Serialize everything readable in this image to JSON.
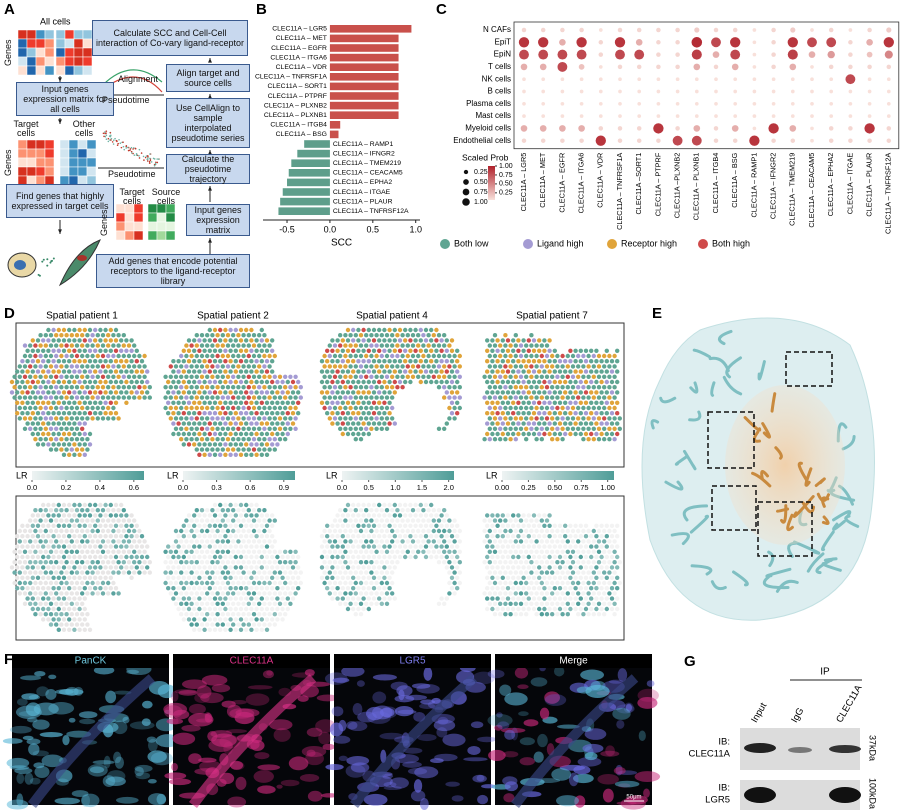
{
  "panel_a": {
    "letter": "A",
    "all_cells": "All cells",
    "genes_label": "Genes",
    "box_input_all": "Input  genes expression matrix for all cells",
    "target_cells": "Target cells",
    "other_cells": "Other cells",
    "box_find": "Find genes that highly expressed in target cells",
    "box_calc_scc": "Calculate SCC and Cell-Cell interaction of Co-vary ligand-receptor",
    "alignment": "Alignment",
    "pseudotime": "Pseudotime",
    "box_align": "Align target and source cells",
    "box_cellalign": "Use CellAlign to sample interpolated pseudotime series",
    "box_trajectory": "Calculate the pseudotime trajectory",
    "source_cells": "Source cells",
    "box_input": "Input  genes expression matrix",
    "box_add": "Add genes that encode potential receptors to the ligand-receptor library"
  },
  "chart_data": [
    {
      "type": "bar",
      "panel_label": "B",
      "xlabel": "SCC",
      "categories": [
        "CLEC11A – LGR5",
        "CLEC11A – MET",
        "CLEC11A – EGFR",
        "CLEC11A – ITGA6",
        "CLEC11A – VDR",
        "CLEC11A – TNFRSF1A",
        "CLEC11A – SORT1",
        "CLEC11A – PTPRF",
        "CLEC11A – PLXNB2",
        "CLEC11A – PLXNB1",
        "CLEC11A – ITGB4",
        "CLEC11A – BSG",
        "CLEC11A – RAMP1",
        "CLEC11A – IFNGR2",
        "CLEC11A – TMEM219",
        "CLEC11A – CEACAM5",
        "CLEC11A – EPHA2",
        "CLEC11A – ITGAE",
        "CLEC11A – PLAUR",
        "CLEC11A – TNFRSF12A"
      ],
      "values": [
        0.95,
        0.8,
        0.8,
        0.8,
        0.8,
        0.8,
        0.8,
        0.8,
        0.8,
        0.8,
        0.12,
        0.1,
        -0.3,
        -0.38,
        -0.45,
        -0.48,
        -0.5,
        -0.55,
        -0.58,
        -0.6
      ],
      "color_positive": "#c9504b",
      "color_negative": "#5e9e8b",
      "xlim": [
        -0.78,
        1.05
      ],
      "xticks": [
        -0.5,
        {
          "value": 0,
          "label": "0.0"
        },
        0.5,
        {
          "value": 1,
          "label": "1.0"
        }
      ]
    },
    {
      "type": "dot",
      "panel_label": "C",
      "rows": [
        "N CAFs",
        "EpiT",
        "EpiN",
        "T cells",
        "NK cells",
        "B cells",
        "Plasma cells",
        "Mast cells",
        "Myeloid cells",
        "Endothelial cells"
      ],
      "columns": [
        "CLEC11A – LGR5",
        "CLEC11A – MET",
        "CLEC11A – EGFR",
        "CLEC11A – ITGA6",
        "CLEC11A – VDR",
        "CLEC11A – TNFRSF1A",
        "CLEC11A –SORT1",
        "CLEC11A – PTPRF",
        "CLEC11A –PLXNB2",
        "CLEC11A – PLXNB1",
        "CLEC11A – ITGB4",
        "CLEC11A – BSG",
        "CLEC11A – RAMP1",
        "CLEC11A – IFNGR2",
        "CLEC11A – TMEM219",
        "CLEC11A – CEACAM5",
        "CLEC11A – EPHA2",
        "CLEC11A – ITGAE",
        "CLEC11A – PLAUR",
        "CLEC11A – TNFRSF12A"
      ],
      "values": [
        [
          0.1,
          0.1,
          0.1,
          0.1,
          0.05,
          0.1,
          0.1,
          0.1,
          0.1,
          0.15,
          0.1,
          0.1,
          0.05,
          0.1,
          0.15,
          0.05,
          0.1,
          0.05,
          0.1,
          0.15
        ],
        [
          0.9,
          0.9,
          0.3,
          0.9,
          0.1,
          0.9,
          0.3,
          0.1,
          0.1,
          0.95,
          0.8,
          0.9,
          0.05,
          0.1,
          0.9,
          0.8,
          0.8,
          0.1,
          0.3,
          0.9
        ],
        [
          0.8,
          0.8,
          0.8,
          0.8,
          0.1,
          0.8,
          0.8,
          0.1,
          0.1,
          0.85,
          0.3,
          0.8,
          0.05,
          0.1,
          0.85,
          0.3,
          0.4,
          0.1,
          0.2,
          0.5
        ],
        [
          0.3,
          0.3,
          0.8,
          0.2,
          0.05,
          0.1,
          0.1,
          0.1,
          0.1,
          0.3,
          0.1,
          0.3,
          0.05,
          0.1,
          0.3,
          0.05,
          0.1,
          0.1,
          0.1,
          0.1
        ],
        [
          0.05,
          0.05,
          0.05,
          0.05,
          0.05,
          0.05,
          0.05,
          0.05,
          0.05,
          0.05,
          0.05,
          0.05,
          0.05,
          0.05,
          0.05,
          0.05,
          0.05,
          0.8,
          0.05,
          0.05
        ],
        [
          0.05,
          0.05,
          0.05,
          0.05,
          0.05,
          0.05,
          0.05,
          0.05,
          0.05,
          0.05,
          0.05,
          0.05,
          0.05,
          0.05,
          0.05,
          0.05,
          0.05,
          0.05,
          0.05,
          0.05
        ],
        [
          0.05,
          0.05,
          0.05,
          0.05,
          0.05,
          0.05,
          0.05,
          0.05,
          0.05,
          0.05,
          0.05,
          0.05,
          0.05,
          0.05,
          0.05,
          0.05,
          0.05,
          0.05,
          0.05,
          0.05
        ],
        [
          0.05,
          0.05,
          0.05,
          0.05,
          0.05,
          0.05,
          0.05,
          0.05,
          0.05,
          0.05,
          0.05,
          0.05,
          0.05,
          0.05,
          0.05,
          0.05,
          0.05,
          0.05,
          0.05,
          0.05
        ],
        [
          0.3,
          0.3,
          0.3,
          0.3,
          0.1,
          0.1,
          0.1,
          0.9,
          0.1,
          0.3,
          0.1,
          0.3,
          0.05,
          0.9,
          0.3,
          0.05,
          0.1,
          0.1,
          0.9,
          0.1
        ],
        [
          0.1,
          0.1,
          0.1,
          0.1,
          0.9,
          0.1,
          0.1,
          0.1,
          0.8,
          0.8,
          0.1,
          0.1,
          0.9,
          0.1,
          0.1,
          0.05,
          0.1,
          0.1,
          0.1,
          0.1
        ]
      ],
      "legend_title": "Scaled Prob",
      "clim": [
        0.05,
        1
      ],
      "color_low": "#f8e0da",
      "color_high": "#b0212b",
      "color_ticks": [
        {
          "value": 0.25,
          "label": "0.25"
        },
        {
          "value": 0.5,
          "label": "0.50"
        },
        {
          "value": 0.75,
          "label": "0.75"
        },
        {
          "value": 1,
          "label": "1.00"
        }
      ],
      "size_ticks": [
        0.25,
        {
          "value": 0.5,
          "label": "0.50"
        },
        0.75,
        {
          "value": 1,
          "label": "1.00"
        }
      ],
      "category_legend": [
        {
          "name": "Both low",
          "color": "#5fa592"
        },
        {
          "name": "Ligand high",
          "color": "#a49bd3"
        },
        {
          "name": "Receptor high",
          "color": "#e0a43a"
        },
        {
          "name": "Both high",
          "color": "#cf4a4a"
        }
      ]
    }
  ],
  "panel_d": {
    "letter": "D",
    "colorbar_colors": [
      "#eef3f3",
      "#4f9d98"
    ],
    "patients": [
      {
        "title": "Spatial patient 1",
        "colorbar_label": "LR",
        "clim": [
          0,
          0.66
        ],
        "ticks": [
          {
            "value": 0,
            "label": "0.0"
          },
          0.2,
          0.4,
          0.6
        ]
      },
      {
        "title": "Spatial patient 2",
        "colorbar_label": "LR",
        "clim": [
          0,
          1.0
        ],
        "ticks": [
          {
            "value": 0,
            "label": "0.0"
          },
          0.3,
          0.6,
          0.9
        ]
      },
      {
        "title": "Spatial patient 4",
        "colorbar_label": "LR",
        "clim": [
          0,
          2.1
        ],
        "ticks": [
          {
            "value": 0,
            "label": "0.0"
          },
          0.5,
          {
            "value": 1,
            "label": "1.0"
          },
          1.5,
          {
            "value": 2,
            "label": "2.0"
          }
        ]
      },
      {
        "title": "Spatial patient 7",
        "colorbar_label": "LR",
        "clim": [
          0,
          1.06
        ],
        "ticks": [
          {
            "value": 0,
            "label": "0.00"
          },
          0.25,
          {
            "value": 0.5,
            "label": "0.50"
          },
          0.75,
          {
            "value": 1,
            "label": "1.00"
          }
        ]
      }
    ]
  },
  "panel_e": {
    "letter": "E"
  },
  "panel_f": {
    "letter": "F",
    "channels": [
      "PanCK",
      "CLEC11A",
      "LGR5",
      "Merge"
    ],
    "scale_bar": "50μm"
  },
  "panel_g": {
    "letter": "G",
    "ip": "IP",
    "lanes": [
      "Input",
      "IgG",
      "CLEC11A"
    ],
    "blot_1": [
      "IB:",
      "CLEC11A"
    ],
    "blot_1_size": "37kDa",
    "blot_2": [
      "IB:",
      "LGR5"
    ],
    "blot_2_size": "100kDa"
  }
}
